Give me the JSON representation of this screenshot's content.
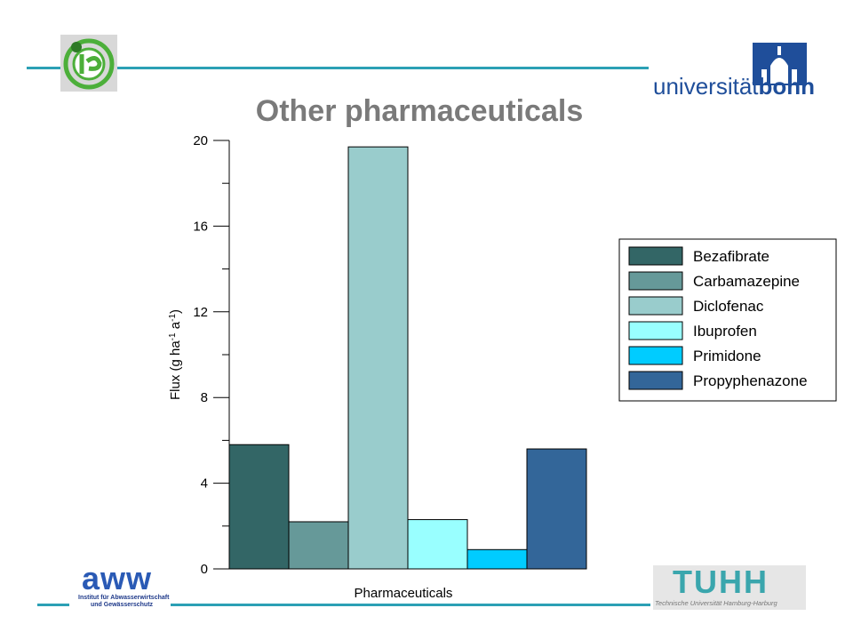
{
  "slide": {
    "title": "Other pharmaceuticals"
  },
  "logos": {
    "university": {
      "text_light": "universität",
      "text_bold": "bonn",
      "color": "#1f4e9a"
    },
    "aww": {
      "name": "aww",
      "line1": "Institut für Abwasserwirtschaft",
      "line2": "und Gewässerschutz",
      "color": "#2a5ab5"
    },
    "tuhh": {
      "name": "TUHH",
      "subtitle": "Technische Universität Hamburg-Harburg",
      "color": "#3aa6ad"
    },
    "emblem": {
      "name": "ife-emblem",
      "color": "#4caf3a"
    }
  },
  "colors": {
    "accent_line": "#2ca0b5"
  },
  "chart_data": {
    "type": "bar",
    "title": "",
    "xlabel": "Pharmaceuticals",
    "ylabel": "Flux (g ha-1 a-1)",
    "ylim": [
      0,
      20
    ],
    "yticks": [
      0,
      4,
      8,
      12,
      16,
      20
    ],
    "legend_position": "right",
    "series": [
      {
        "name": "Bezafibrate",
        "value": 5.8,
        "color": "#336666"
      },
      {
        "name": "Carbamazepine",
        "value": 2.2,
        "color": "#669999"
      },
      {
        "name": "Diclofenac",
        "value": 19.7,
        "color": "#99cccc"
      },
      {
        "name": "Ibuprofen",
        "value": 2.3,
        "color": "#99ffff"
      },
      {
        "name": "Primidone",
        "value": 0.9,
        "color": "#00ccff"
      },
      {
        "name": "Propyphenazone",
        "value": 5.6,
        "color": "#336699"
      }
    ]
  }
}
